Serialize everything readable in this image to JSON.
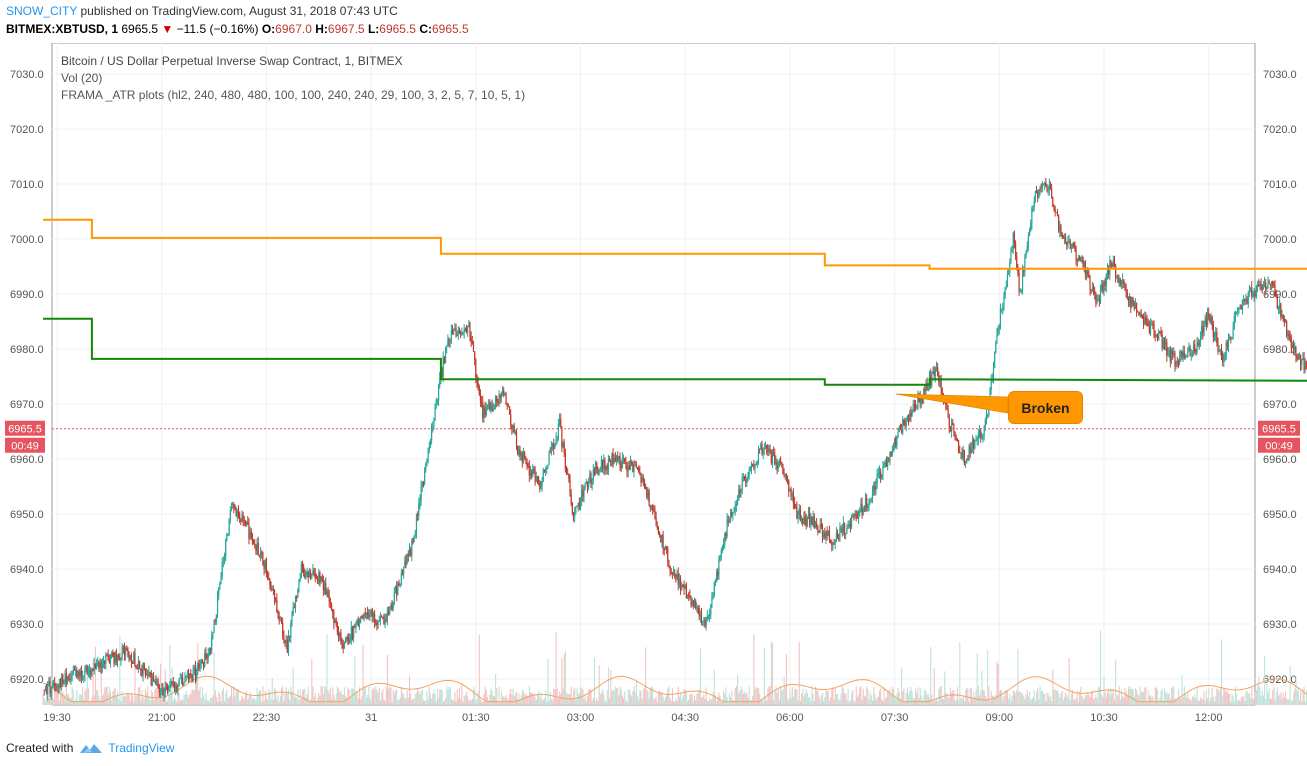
{
  "header": {
    "author": "SNOW_CITY",
    "published_text": "published on TradingView.com, August 31, 2018 07:43 UTC",
    "symbol": "BITMEX:XBTUSD, 1",
    "last": "6965.5",
    "change": "−11.5 (−0.16%)",
    "o_label": "O:",
    "o": "6967.0",
    "h_label": "H:",
    "h": "6967.5",
    "l_label": "L:",
    "l": "6965.5",
    "c_label": "C:",
    "c": "6965.5"
  },
  "legend": {
    "title": "Bitcoin / US Dollar Perpetual Inverse Swap Contract, 1, BITMEX",
    "vol": "Vol (20)",
    "indicator": "FRAMA _ATR plots (hl2, 240, 480, 480, 100, 100, 240, 240, 29, 100, 3, 2, 5, 7, 10, 5, 1)"
  },
  "annotation": {
    "label": "Broken"
  },
  "footer": {
    "created_with": "Created with",
    "brand": "TradingView"
  },
  "colors": {
    "up": "#26a69a",
    "down": "#c0392b",
    "frama_upper": "#ff9800",
    "frama_lower": "#138808",
    "price_tag": "#e5545f",
    "grid": "#eef0f3",
    "brand": "#2196f3"
  },
  "chart_data": {
    "type": "candlestick",
    "y_ticks": [
      "7030.0",
      "7020.0",
      "7010.0",
      "7000.0",
      "6990.0",
      "6980.0",
      "6970.0",
      "6960.0",
      "6950.0",
      "6940.0",
      "6930.0",
      "6920.0"
    ],
    "x_ticks": [
      "19:30",
      "21:00",
      "22:30",
      "31",
      "01:30",
      "03:00",
      "04:30",
      "06:00",
      "07:30",
      "09:00",
      "10:30",
      "12:00"
    ],
    "price_label": "6965.5",
    "countdown_label": "00:49",
    "last_price": 6965.5,
    "ylim": [
      6915,
      7035
    ],
    "price_path": [
      [
        19.3,
        6918
      ],
      [
        20.0,
        6922
      ],
      [
        20.5,
        6925
      ],
      [
        21.0,
        6918
      ],
      [
        21.4,
        6920
      ],
      [
        21.7,
        6925
      ],
      [
        22.0,
        6952
      ],
      [
        22.2,
        6948
      ],
      [
        22.5,
        6940
      ],
      [
        22.8,
        6926
      ],
      [
        23.0,
        6940
      ],
      [
        23.3,
        6938
      ],
      [
        23.6,
        6926
      ],
      [
        23.9,
        6932
      ],
      [
        24.2,
        6930
      ],
      [
        24.6,
        6945
      ],
      [
        24.9,
        6968
      ],
      [
        25.1,
        6982
      ],
      [
        25.4,
        6984
      ],
      [
        25.6,
        6968
      ],
      [
        25.9,
        6972
      ],
      [
        26.1,
        6962
      ],
      [
        26.4,
        6955
      ],
      [
        26.7,
        6966
      ],
      [
        26.9,
        6950
      ],
      [
        27.2,
        6958
      ],
      [
        27.5,
        6960
      ],
      [
        27.8,
        6958
      ],
      [
        28.0,
        6952
      ],
      [
        28.3,
        6940
      ],
      [
        28.6,
        6934
      ],
      [
        28.8,
        6930
      ],
      [
        29.1,
        6948
      ],
      [
        29.3,
        6955
      ],
      [
        29.6,
        6962
      ],
      [
        29.9,
        6958
      ],
      [
        30.1,
        6950
      ],
      [
        30.4,
        6948
      ],
      [
        30.6,
        6945
      ],
      [
        30.9,
        6949
      ],
      [
        31.1,
        6952
      ],
      [
        31.4,
        6960
      ],
      [
        31.6,
        6966
      ],
      [
        31.9,
        6972
      ],
      [
        32.1,
        6976
      ],
      [
        32.3,
        6966
      ],
      [
        32.5,
        6960
      ],
      [
        32.8,
        6966
      ],
      [
        33.0,
        6985
      ],
      [
        33.2,
        7000
      ],
      [
        33.3,
        6990
      ],
      [
        33.5,
        7008
      ],
      [
        33.7,
        7010
      ],
      [
        33.9,
        7000
      ],
      [
        34.2,
        6996
      ],
      [
        34.4,
        6988
      ],
      [
        34.6,
        6996
      ],
      [
        34.9,
        6988
      ],
      [
        35.1,
        6985
      ],
      [
        35.3,
        6982
      ],
      [
        35.5,
        6978
      ],
      [
        35.8,
        6980
      ],
      [
        36.0,
        6986
      ],
      [
        36.2,
        6978
      ],
      [
        36.4,
        6986
      ],
      [
        36.6,
        6990
      ],
      [
        36.9,
        6992
      ],
      [
        37.1,
        6984
      ],
      [
        37.3,
        6978
      ],
      [
        37.5,
        6976
      ],
      [
        37.6,
        6970
      ],
      [
        37.7,
        6960
      ],
      [
        37.9,
        6966
      ]
    ],
    "frama_upper": [
      [
        19.3,
        7003.5
      ],
      [
        20.0,
        7003.5
      ],
      [
        20.0,
        7000.2
      ],
      [
        25.0,
        7000.2
      ],
      [
        25.0,
        6997.3
      ],
      [
        30.5,
        6997.3
      ],
      [
        30.5,
        6995.2
      ],
      [
        32.0,
        6995.2
      ],
      [
        32.0,
        6994.6
      ],
      [
        37.9,
        6994.6
      ]
    ],
    "frama_lower": [
      [
        19.3,
        6985.5
      ],
      [
        20.0,
        6985.5
      ],
      [
        20.0,
        6978.2
      ],
      [
        25.0,
        6978.2
      ],
      [
        25.0,
        6974.5
      ],
      [
        30.5,
        6974.5
      ],
      [
        30.5,
        6973.5
      ],
      [
        32.0,
        6973.5
      ],
      [
        32.0,
        6974.5
      ],
      [
        37.9,
        6974.2
      ]
    ]
  }
}
